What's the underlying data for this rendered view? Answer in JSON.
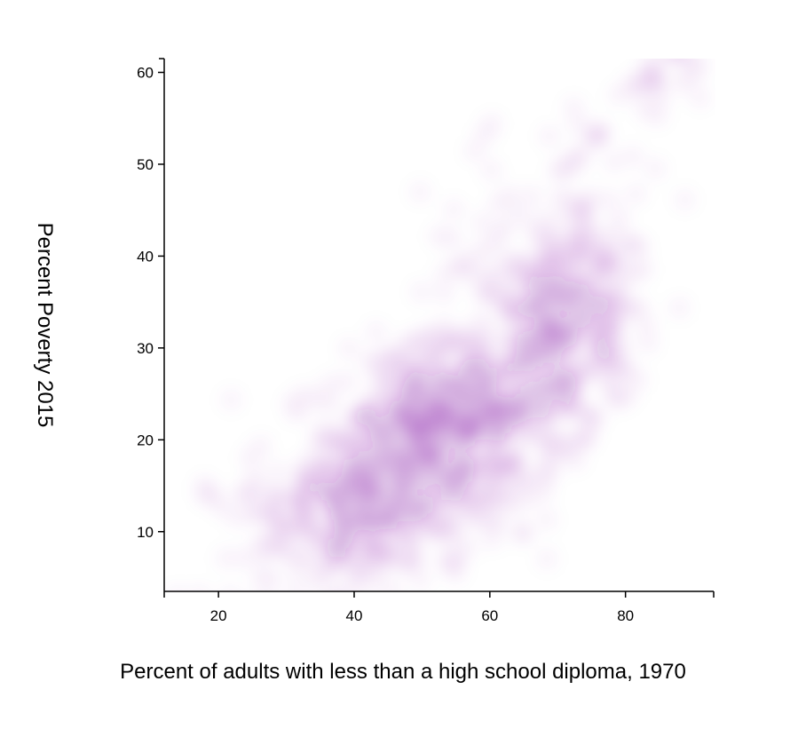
{
  "chart_data": {
    "type": "heatmap",
    "xlabel": "Percent of adults with less than a high school diploma, 1970",
    "ylabel": "Percent Poverty 2015",
    "xlim": [
      12,
      93
    ],
    "ylim": [
      3.5,
      61.5
    ],
    "x_ticks": [
      "20",
      "40",
      "60",
      "80"
    ],
    "y_ticks": [
      "10",
      "20",
      "30",
      "40",
      "50",
      "60"
    ],
    "x_tick_values": [
      20,
      40,
      60,
      80
    ],
    "y_tick_values": [
      10,
      20,
      30,
      40,
      50,
      60
    ],
    "grid": false,
    "color": "#8e24aa",
    "density_clusters": [
      {
        "x": 48,
        "y": 18,
        "sx": 7.5,
        "sy": 5.5,
        "weight": 1.0
      },
      {
        "x": 52,
        "y": 23,
        "sx": 5,
        "sy": 4,
        "weight": 0.55
      },
      {
        "x": 43,
        "y": 13,
        "sx": 5,
        "sy": 3.5,
        "weight": 0.45
      },
      {
        "x": 69,
        "y": 30,
        "sx": 6,
        "sy": 5.5,
        "weight": 0.75
      },
      {
        "x": 72,
        "y": 37,
        "sx": 4.5,
        "sy": 4,
        "weight": 0.35
      },
      {
        "x": 63,
        "y": 24,
        "sx": 5,
        "sy": 4,
        "weight": 0.35
      },
      {
        "x": 36,
        "y": 12,
        "sx": 6,
        "sy": 5,
        "weight": 0.25
      },
      {
        "x": 58,
        "y": 16,
        "sx": 6,
        "sy": 4,
        "weight": 0.22
      },
      {
        "x": 28,
        "y": 10,
        "sx": 5,
        "sy": 4,
        "weight": 0.12
      },
      {
        "x": 62,
        "y": 40,
        "sx": 7,
        "sy": 6,
        "weight": 0.12
      },
      {
        "x": 75,
        "y": 48,
        "sx": 5,
        "sy": 6,
        "weight": 0.08
      },
      {
        "x": 85,
        "y": 60,
        "sx": 3,
        "sy": 2,
        "weight": 0.06
      }
    ]
  }
}
